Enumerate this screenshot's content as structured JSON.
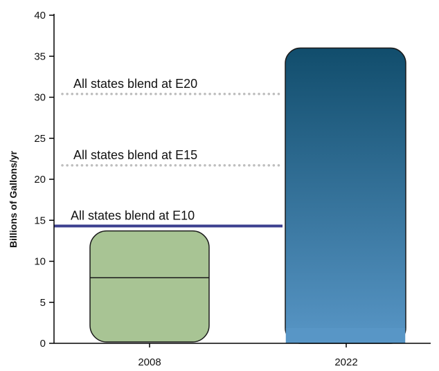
{
  "chart_data": {
    "type": "bar",
    "categories": [
      "2008",
      "2022"
    ],
    "values": [
      13.7,
      36
    ],
    "segment_line_2008": 8,
    "ylabel": "Billions of Gallons/yr",
    "xlabel": "",
    "ylim": [
      0,
      40
    ],
    "yticks": [
      "0",
      "5",
      "10",
      "15",
      "20",
      "25",
      "30",
      "35",
      "40"
    ],
    "grid": false,
    "reference_lines": [
      {
        "label": "All states blend at E10",
        "value": 14.3,
        "style": "solid",
        "color": "#3b3f8f"
      },
      {
        "label": "All states blend at E15",
        "value": 21.7,
        "style": "dotted",
        "color": "#bdbdbd"
      },
      {
        "label": "All states blend at E20",
        "value": 30.4,
        "style": "dotted",
        "color": "#bdbdbd"
      }
    ],
    "colors": {
      "bar_2008": "#a8c494",
      "bar_2022_top": "#114d6c",
      "bar_2022_bottom": "#5896c6",
      "axis": "#000000"
    }
  }
}
